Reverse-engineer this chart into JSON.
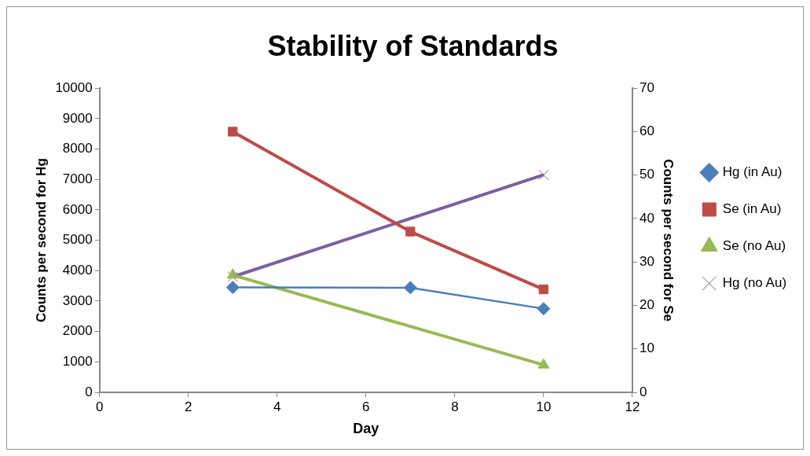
{
  "chart_data": {
    "type": "line",
    "title": "Stability of Standards",
    "xlabel": "Day",
    "ylabel": "Counts per second for Hg",
    "y2label": "Counts per second for Se",
    "x": [
      3,
      7,
      10
    ],
    "series": [
      {
        "name": "Hg (in Au)",
        "color": "#4a7ebb",
        "marker": "diamond",
        "values": [
          3450,
          3440,
          2750
        ]
      },
      {
        "name": "Se (in Au)",
        "color": "#be4b48",
        "marker": "square",
        "axis": "y2",
        "values": [
          60,
          37,
          23.7
        ]
      },
      {
        "name": "Se (no Au)",
        "color": "#98b954",
        "marker": "triangle",
        "axis": "y2",
        "values": [
          27,
          null,
          6.3
        ]
      },
      {
        "name": "Hg (no Au)",
        "color": "#7d5fa0",
        "marker": "cross",
        "values": [
          3800,
          null,
          7150
        ]
      }
    ],
    "xlim": [
      0,
      12
    ],
    "xticks": [
      0,
      2,
      4,
      6,
      8,
      10,
      12
    ],
    "ylim": [
      0,
      10000
    ],
    "yticks": [
      0,
      1000,
      2000,
      3000,
      4000,
      5000,
      6000,
      7000,
      8000,
      9000,
      10000
    ],
    "y2lim": [
      0,
      70
    ],
    "y2ticks": [
      0,
      10,
      20,
      30,
      40,
      50,
      60,
      70
    ],
    "grid": false,
    "legend": "right",
    "line_style": "solid"
  }
}
